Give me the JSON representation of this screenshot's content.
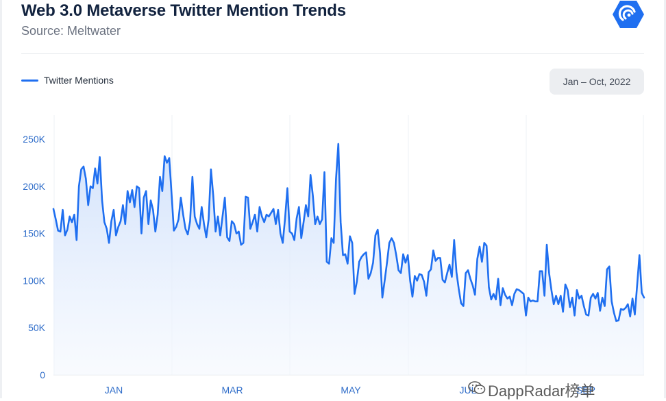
{
  "header": {
    "title": "Web 3.0 Metaverse Twitter Mention Trends",
    "subtitle": "Source: Meltwater"
  },
  "brand": {
    "icon": "dappradar-logo-icon",
    "color": "#1f6ff0"
  },
  "date_range": {
    "label": "Jan – Oct, 2022"
  },
  "watermark": {
    "text": "DappRadar榜单",
    "icon": "wechat-icon"
  },
  "chart_data": {
    "type": "area",
    "title": "Web 3.0 Metaverse Twitter Mention Trends",
    "subtitle": "Source: Meltwater",
    "x_tick_labels": [
      "JAN",
      "MAR",
      "MAY",
      "JUL",
      "SEP"
    ],
    "y_tick_labels": [
      "0",
      "50K",
      "100K",
      "150K",
      "200K",
      "250K"
    ],
    "ylim": [
      0,
      275000
    ],
    "grid": {
      "vertical": true,
      "horizontal": false
    },
    "legend_position": "top-left",
    "colors": {
      "line": "#1f6ff0",
      "fill_top": "#cfe0fb",
      "fill_bottom": "#f4f8fe"
    },
    "series": [
      {
        "name": "Twitter Mentions",
        "values": [
          176000,
          165000,
          153000,
          152000,
          175000,
          148000,
          154000,
          168000,
          162000,
          170000,
          143000,
          200000,
          218000,
          221000,
          208000,
          180000,
          200000,
          198000,
          219000,
          203000,
          231000,
          185000,
          162000,
          155000,
          140000,
          163000,
          175000,
          148000,
          157000,
          163000,
          180000,
          160000,
          195000,
          183000,
          196000,
          178000,
          200000,
          198000,
          150000,
          188000,
          195000,
          160000,
          185000,
          175000,
          152000,
          170000,
          210000,
          195000,
          232000,
          225000,
          230000,
          192000,
          153000,
          157000,
          165000,
          188000,
          170000,
          155000,
          149000,
          163000,
          210000,
          168000,
          160000,
          155000,
          178000,
          160000,
          146000,
          165000,
          218000,
          190000,
          152000,
          168000,
          148000,
          168000,
          188000,
          146000,
          142000,
          163000,
          160000,
          150000,
          152000,
          138000,
          140000,
          189000,
          188000,
          155000,
          162000,
          170000,
          152000,
          178000,
          168000,
          162000,
          170000,
          168000,
          172000,
          176000,
          160000,
          175000,
          150000,
          140000,
          166000,
          198000,
          152000,
          150000,
          143000,
          166000,
          178000,
          145000,
          162000,
          180000,
          168000,
          212000,
          190000,
          160000,
          168000,
          160000,
          165000,
          215000,
          120000,
          118000,
          145000,
          140000,
          208000,
          245000,
          162000,
          127000,
          128000,
          118000,
          147000,
          140000,
          86000,
          99000,
          120000,
          125000,
          128000,
          130000,
          102000,
          108000,
          119000,
          148000,
          154000,
          129000,
          82000,
          100000,
          119000,
          140000,
          145000,
          140000,
          127000,
          111000,
          108000,
          128000,
          119000,
          127000,
          100000,
          83000,
          105000,
          100000,
          107000,
          106000,
          99000,
          84000,
          109000,
          112000,
          132000,
          121000,
          124000,
          124000,
          101000,
          98000,
          108000,
          117000,
          104000,
          143000,
          109000,
          91000,
          76000,
          73000,
          108000,
          111000,
          102000,
          95000,
          85000,
          123000,
          136000,
          120000,
          140000,
          137000,
          93000,
          80000,
          86000,
          80000,
          102000,
          74000,
          92000,
          85000,
          81000,
          83000,
          74000,
          86000,
          91000,
          90000,
          88000,
          86000,
          63000,
          82000,
          78000,
          79000,
          78000,
          78000,
          110000,
          110000,
          84000,
          138000,
          108000,
          90000,
          75000,
          84000,
          75000,
          84000,
          67000,
          96000,
          90000,
          72000,
          82000,
          63000,
          90000,
          81000,
          84000,
          73000,
          64000,
          63000,
          82000,
          86000,
          81000,
          87000,
          68000,
          82000,
          73000,
          112000,
          115000,
          78000,
          66000,
          57000,
          58000,
          70000,
          69000,
          71000,
          75000,
          62000,
          81000,
          64000,
          95000,
          127000,
          87000,
          82000
        ]
      }
    ]
  }
}
